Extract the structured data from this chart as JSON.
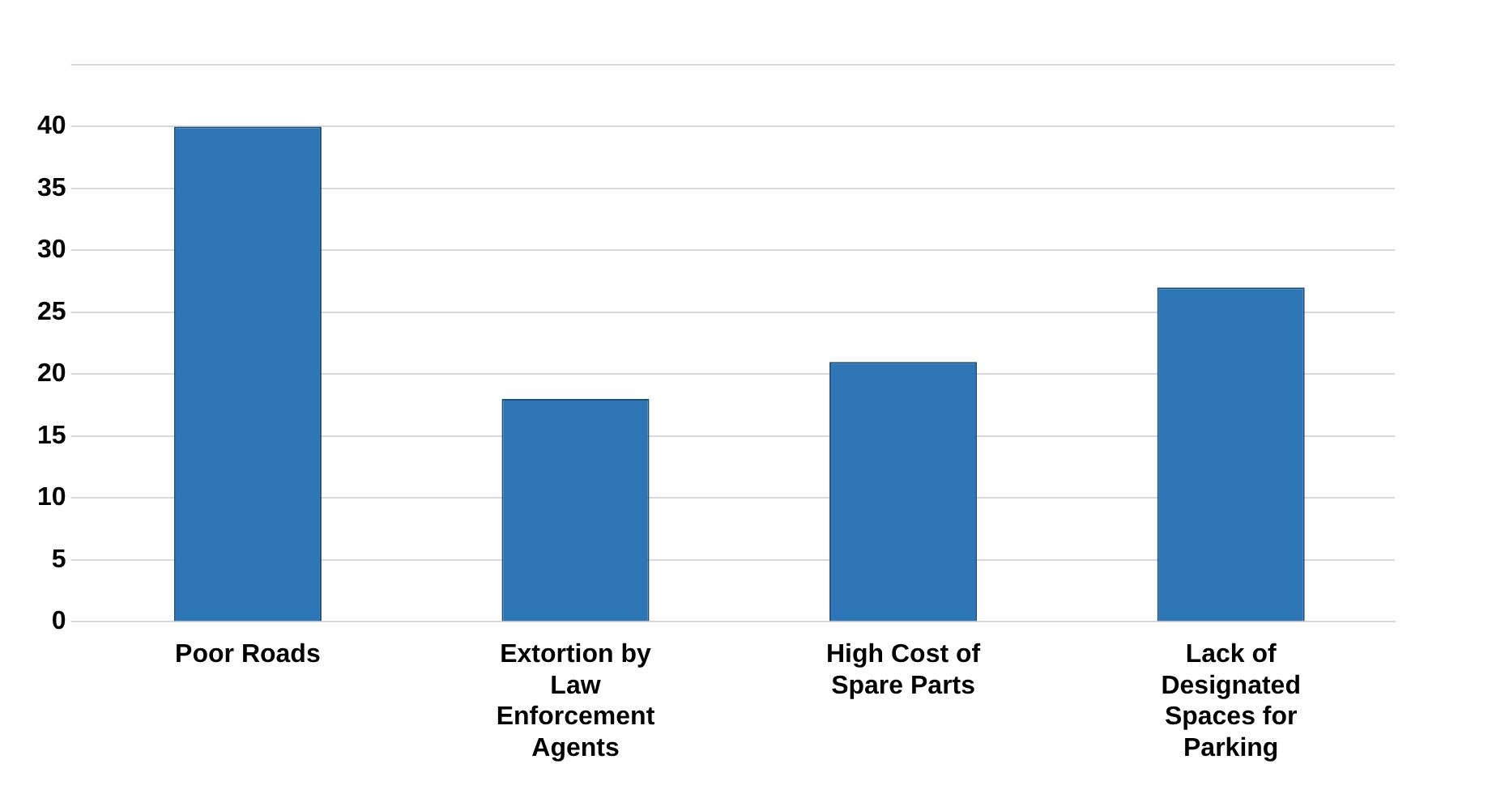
{
  "chart_data": {
    "type": "bar",
    "categories": [
      "Poor Roads",
      "Extortion by Law Enforcement Agents",
      "High Cost of Spare Parts",
      "Lack of Designated Spaces for Parking"
    ],
    "values": [
      40,
      18,
      21,
      27
    ],
    "color": "#2e75b6",
    "ylim": [
      0,
      45
    ],
    "yticks": [
      0,
      5,
      10,
      15,
      20,
      25,
      30,
      35,
      40,
      {
        "value": 45,
        "label": null
      }
    ],
    "grid": true,
    "legend": false
  }
}
